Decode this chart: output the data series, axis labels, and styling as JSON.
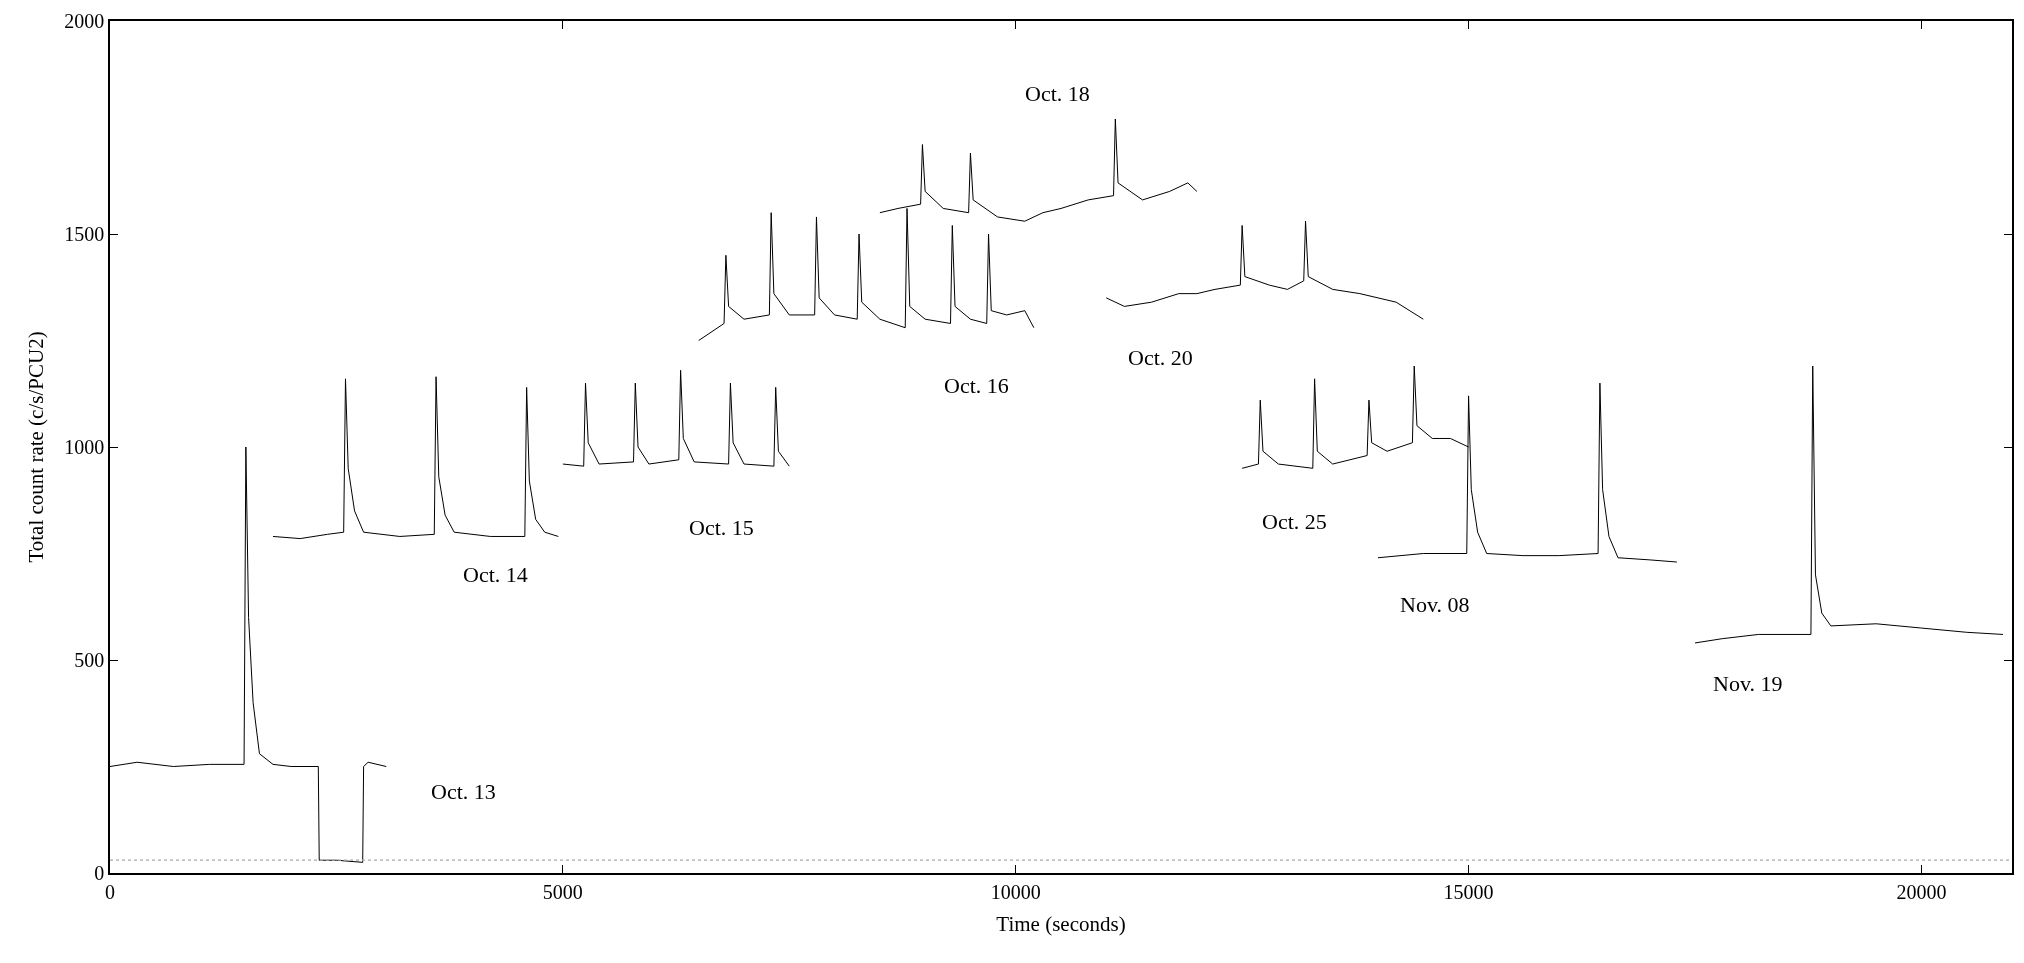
{
  "chart_data": {
    "type": "line",
    "xlabel": "Time (seconds)",
    "ylabel": "Total count rate (c/s/PCU2)",
    "xlim": [
      0,
      21000
    ],
    "ylim": [
      0,
      2000
    ],
    "xticks": [
      0,
      5000,
      10000,
      15000,
      20000
    ],
    "yticks": [
      0,
      500,
      1000,
      1500,
      2000
    ],
    "legend": false,
    "marker": "none",
    "line_style": "solid",
    "series": [
      {
        "name": "Oct. 13",
        "color": "#000000",
        "x": [
          0,
          300,
          700,
          1100,
          1480,
          1500,
          1530,
          1580,
          1650,
          1800,
          2000,
          2300,
          2310,
          2500,
          2790,
          2800,
          2850,
          3050
        ],
        "values": [
          250,
          260,
          250,
          255,
          255,
          1000,
          600,
          400,
          280,
          255,
          250,
          250,
          30,
          30,
          25,
          250,
          260,
          250
        ]
      },
      {
        "name": "Oct. 14",
        "color": "#000000",
        "x": [
          1800,
          2100,
          2400,
          2580,
          2600,
          2630,
          2700,
          2800,
          3200,
          3580,
          3600,
          3630,
          3700,
          3800,
          4200,
          4580,
          4600,
          4630,
          4700,
          4800,
          4950
        ],
        "values": [
          790,
          785,
          795,
          800,
          1160,
          950,
          850,
          800,
          790,
          795,
          1165,
          930,
          840,
          800,
          790,
          790,
          1140,
          920,
          830,
          800,
          790
        ]
      },
      {
        "name": "Oct. 15",
        "color": "#000000",
        "x": [
          5000,
          5230,
          5250,
          5280,
          5400,
          5780,
          5800,
          5830,
          5950,
          6280,
          6300,
          6330,
          6450,
          6830,
          6850,
          6880,
          7000,
          7330,
          7350,
          7380,
          7500
        ],
        "values": [
          960,
          955,
          1150,
          1010,
          960,
          965,
          1150,
          1000,
          960,
          970,
          1180,
          1020,
          965,
          960,
          1150,
          1010,
          960,
          955,
          1140,
          990,
          955
        ]
      },
      {
        "name": "Oct. 16",
        "color": "#000000",
        "x": [
          6500,
          6780,
          6800,
          6830,
          7000,
          7280,
          7300,
          7330,
          7500,
          7780,
          7800,
          7830,
          8000,
          8250,
          8270,
          8300,
          8500,
          8780,
          8800,
          8830,
          9000,
          9280,
          9300,
          9330,
          9500,
          9680,
          9700,
          9730,
          9900,
          10100,
          10200
        ],
        "values": [
          1250,
          1290,
          1450,
          1330,
          1300,
          1310,
          1550,
          1360,
          1310,
          1310,
          1540,
          1350,
          1310,
          1300,
          1500,
          1340,
          1300,
          1280,
          1560,
          1330,
          1300,
          1290,
          1520,
          1330,
          1300,
          1290,
          1500,
          1320,
          1310,
          1320,
          1280
        ]
      },
      {
        "name": "Oct. 18",
        "color": "#000000",
        "x": [
          8500,
          8700,
          8950,
          8970,
          9000,
          9200,
          9480,
          9500,
          9530,
          9800,
          10100,
          10300,
          10500,
          10800,
          11080,
          11100,
          11130,
          11400,
          11700,
          11900,
          12000
        ],
        "values": [
          1550,
          1560,
          1570,
          1710,
          1600,
          1560,
          1550,
          1690,
          1580,
          1540,
          1530,
          1550,
          1560,
          1580,
          1590,
          1770,
          1620,
          1580,
          1600,
          1620,
          1600
        ]
      },
      {
        "name": "Oct. 20",
        "color": "#000000",
        "x": [
          11000,
          11200,
          11500,
          11800,
          12000,
          12200,
          12480,
          12500,
          12530,
          12800,
          13000,
          13180,
          13200,
          13230,
          13500,
          13800,
          14000,
          14200,
          14500
        ],
        "values": [
          1350,
          1330,
          1340,
          1360,
          1360,
          1370,
          1380,
          1520,
          1400,
          1380,
          1370,
          1390,
          1530,
          1400,
          1370,
          1360,
          1350,
          1340,
          1300
        ]
      },
      {
        "name": "Oct. 25",
        "color": "#000000",
        "x": [
          12500,
          12680,
          12700,
          12730,
          12900,
          13280,
          13300,
          13330,
          13500,
          13880,
          13900,
          13930,
          14100,
          14380,
          14400,
          14430,
          14600,
          14800,
          15000
        ],
        "values": [
          950,
          960,
          1110,
          990,
          960,
          950,
          1160,
          990,
          960,
          980,
          1110,
          1010,
          990,
          1010,
          1190,
          1050,
          1020,
          1020,
          1000
        ]
      },
      {
        "name": "Nov. 08",
        "color": "#000000",
        "x": [
          14000,
          14500,
          14980,
          15000,
          15030,
          15100,
          15200,
          15600,
          16000,
          16430,
          16450,
          16480,
          16550,
          16650,
          17000,
          17300
        ],
        "values": [
          740,
          750,
          750,
          1120,
          900,
          800,
          750,
          745,
          745,
          750,
          1150,
          900,
          790,
          740,
          735,
          730
        ]
      },
      {
        "name": "Nov. 19",
        "color": "#000000",
        "x": [
          17500,
          17800,
          18200,
          18780,
          18800,
          18830,
          18900,
          19000,
          19500,
          20000,
          20500,
          20900
        ],
        "values": [
          540,
          550,
          560,
          560,
          1190,
          700,
          610,
          580,
          585,
          575,
          565,
          560
        ]
      }
    ],
    "ref_lines": [
      {
        "axis": "y",
        "value": 30,
        "color": "#aaaaaa",
        "line_style": "dotted"
      }
    ]
  }
}
